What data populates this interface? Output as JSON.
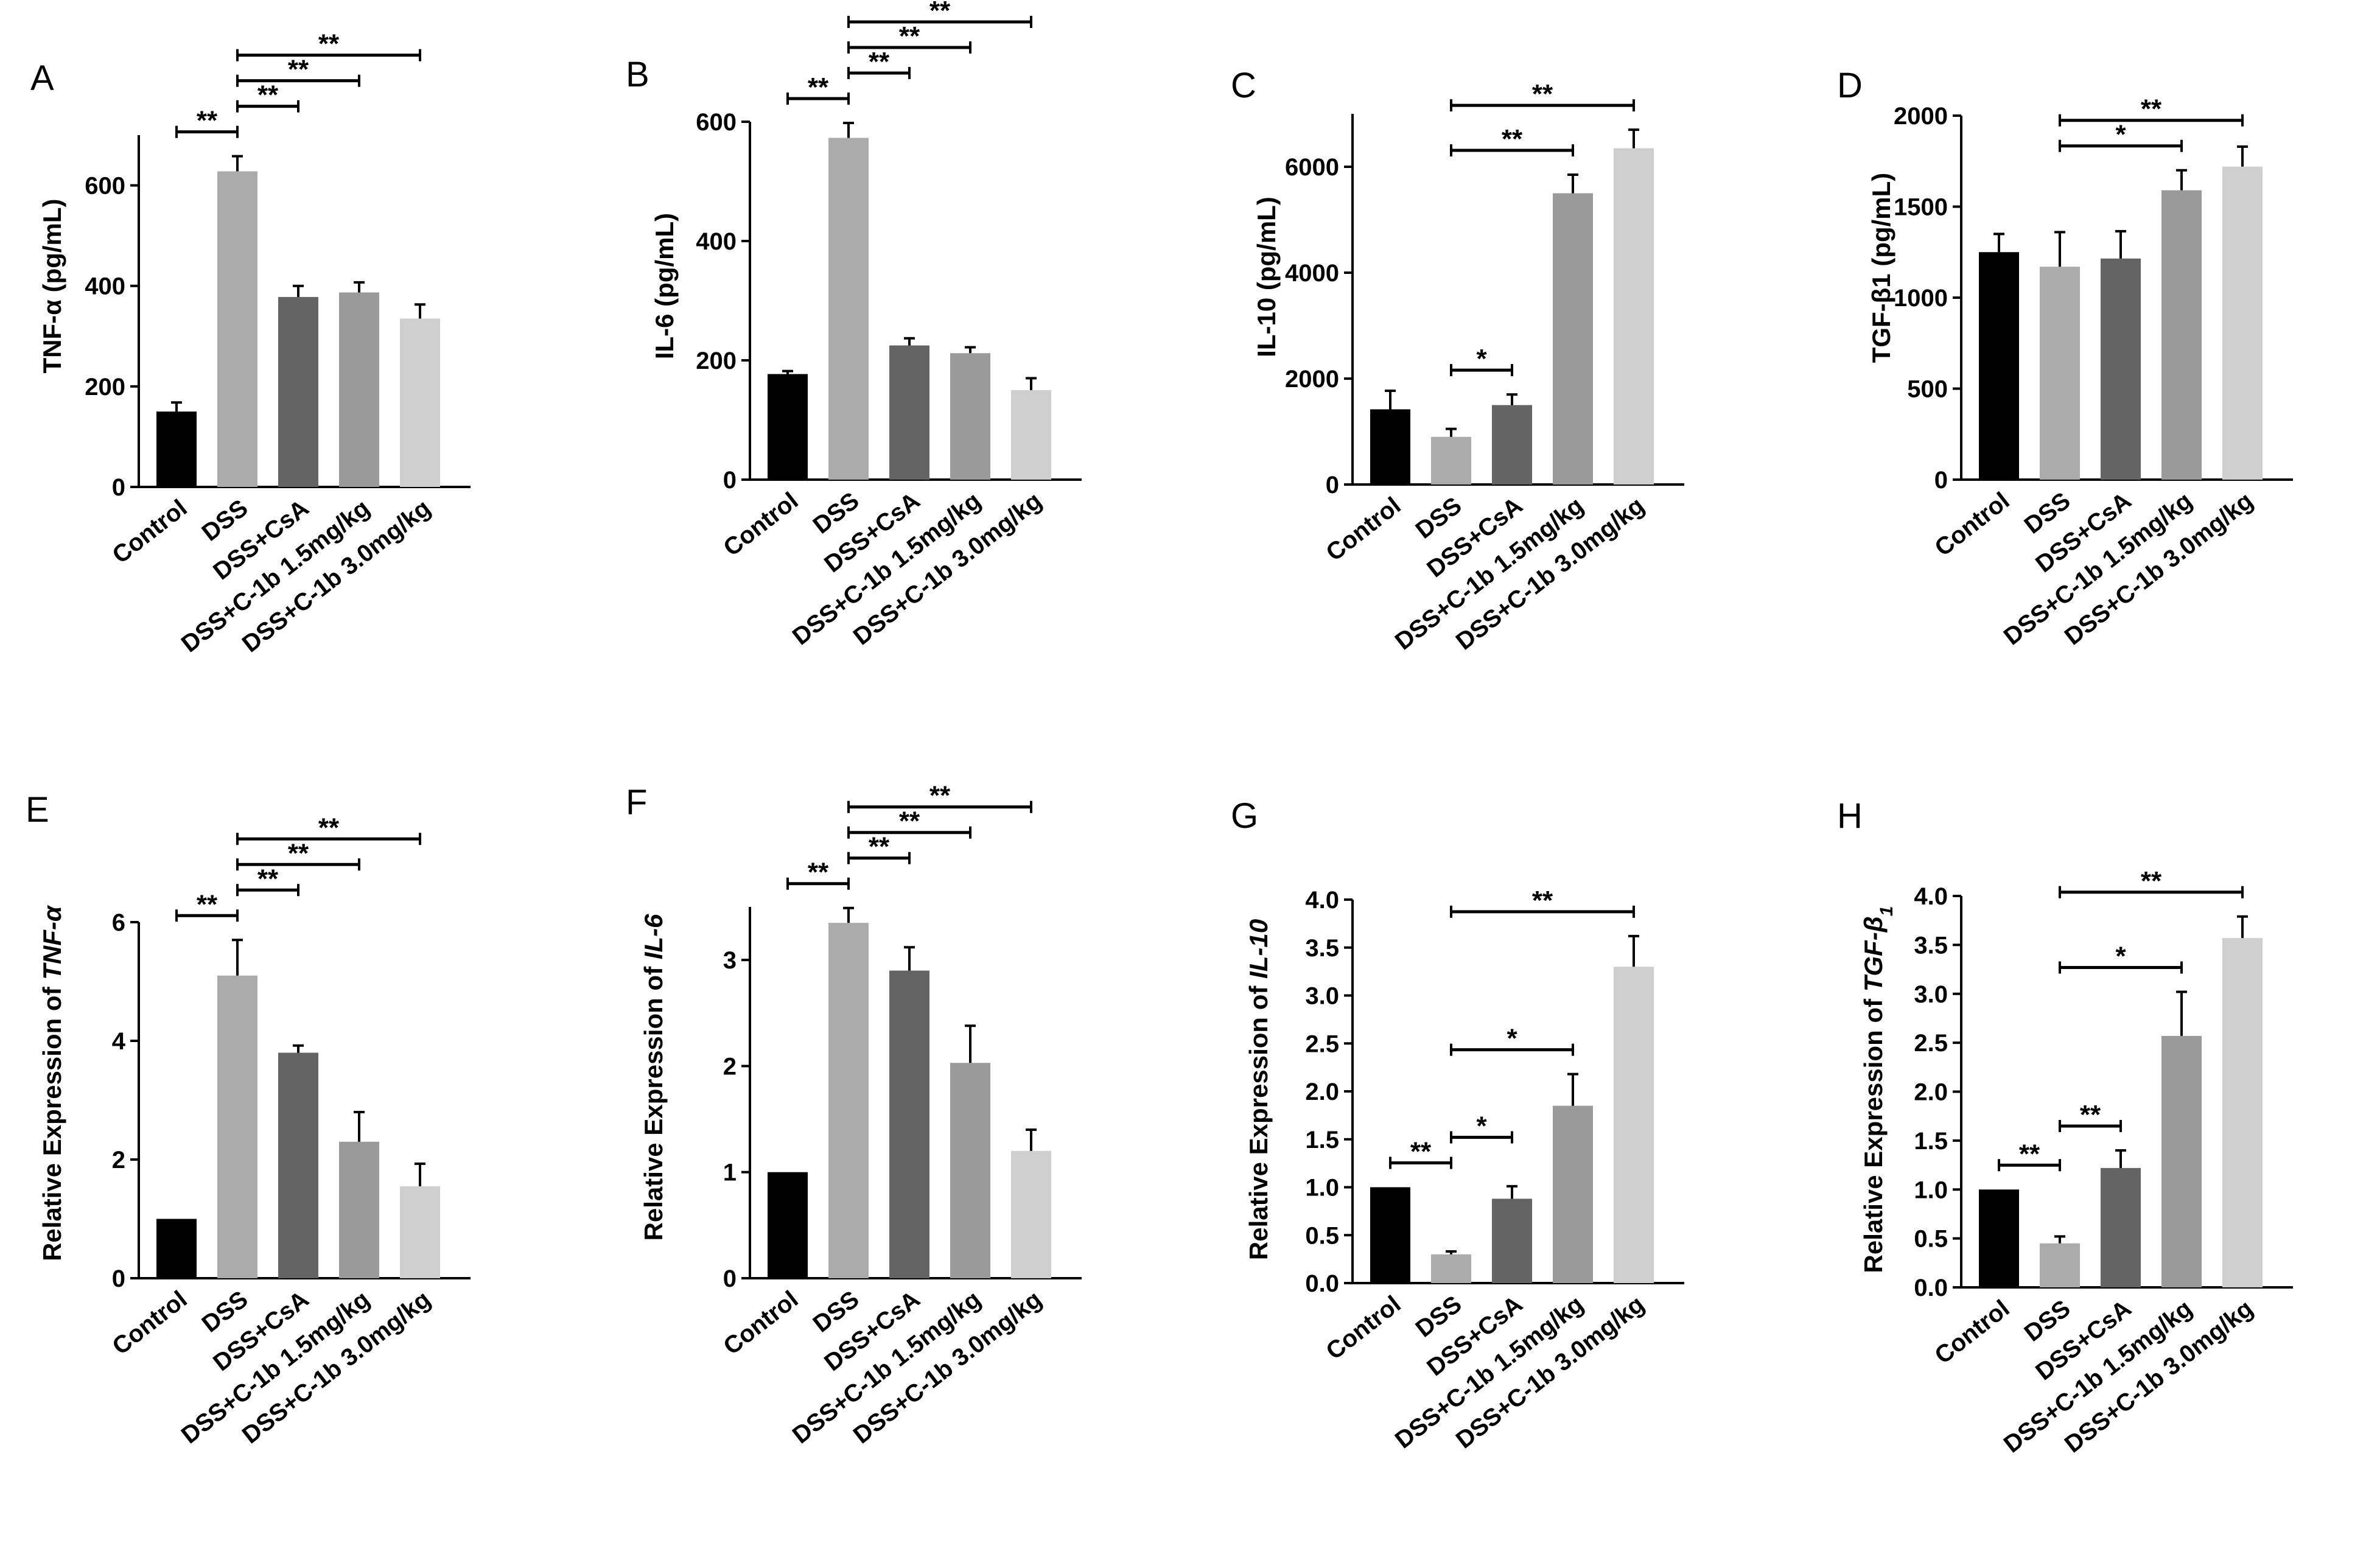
{
  "figure": {
    "categories": [
      "Control",
      "DSS",
      "DSS+CsA",
      "DSS+C-1b 1.5mg/kg",
      "DSS+C-1b 3.0mg/kg"
    ],
    "bar_colors": [
      "#000000",
      "#ababab",
      "#646464",
      "#9a9a9a",
      "#cfcfcf"
    ]
  },
  "chart_data": [
    {
      "type": "bar",
      "panel": "A",
      "title": "",
      "ylabel": "TNF-α (pg/mL)",
      "ylabel_parts": [
        {
          "t": "TNF-α (pg/mL)",
          "i": false
        }
      ],
      "categories": [
        "Control",
        "DSS",
        "DSS+CsA",
        "DSS+C-1b 1.5mg/kg",
        "DSS+C-1b 3.0mg/kg"
      ],
      "values": [
        150,
        628,
        378,
        387,
        335
      ],
      "errors": [
        18,
        30,
        22,
        20,
        28
      ],
      "ylim": [
        0,
        700
      ],
      "yticks": [
        0,
        200,
        400,
        600
      ],
      "ytick_labels": [
        "0",
        "200",
        "400",
        "600"
      ],
      "significance": [
        {
          "from": 0,
          "to": 1,
          "label": "**"
        },
        {
          "from": 1,
          "to": 2,
          "label": "**"
        },
        {
          "from": 1,
          "to": 3,
          "label": "**"
        },
        {
          "from": 1,
          "to": 4,
          "label": "**"
        }
      ]
    },
    {
      "type": "bar",
      "panel": "B",
      "title": "",
      "ylabel": "IL-6 (pg/mL)",
      "ylabel_parts": [
        {
          "t": "IL-6 (pg/mL)",
          "i": false
        }
      ],
      "categories": [
        "Control",
        "DSS",
        "DSS+CsA",
        "DSS+C-1b 1.5mg/kg",
        "DSS+C-1b 3.0mg/kg"
      ],
      "values": [
        177,
        573,
        225,
        212,
        150
      ],
      "errors": [
        5,
        25,
        12,
        10,
        20
      ],
      "ylim": [
        0,
        600
      ],
      "yticks": [
        0,
        200,
        400,
        600
      ],
      "ytick_labels": [
        "0",
        "200",
        "400",
        "600"
      ],
      "significance": [
        {
          "from": 0,
          "to": 1,
          "label": "**"
        },
        {
          "from": 1,
          "to": 2,
          "label": "**"
        },
        {
          "from": 1,
          "to": 3,
          "label": "**"
        },
        {
          "from": 1,
          "to": 4,
          "label": "**"
        }
      ]
    },
    {
      "type": "bar",
      "panel": "C",
      "title": "",
      "ylabel": "IL-10 (pg/mL)",
      "ylabel_parts": [
        {
          "t": "IL-10 (pg/mL)",
          "i": false
        }
      ],
      "categories": [
        "Control",
        "DSS",
        "DSS+CsA",
        "DSS+C-1b 1.5mg/kg",
        "DSS+C-1b 3.0mg/kg"
      ],
      "values": [
        1420,
        900,
        1500,
        5500,
        6350
      ],
      "errors": [
        350,
        150,
        200,
        350,
        350
      ],
      "ylim": [
        0,
        7000
      ],
      "yticks": [
        0,
        2000,
        4000,
        6000
      ],
      "ytick_labels": [
        "0",
        "2000",
        "4000",
        "6000"
      ],
      "significance": [
        {
          "from": 1,
          "to": 2,
          "label": "*"
        },
        {
          "from": 1,
          "to": 3,
          "label": "**"
        },
        {
          "from": 1,
          "to": 4,
          "label": "**"
        }
      ]
    },
    {
      "type": "bar",
      "panel": "D",
      "title": "",
      "ylabel": "TGF-β1 (pg/mL)",
      "ylabel_parts": [
        {
          "t": "TGF-β1 (pg/mL)",
          "i": false
        }
      ],
      "categories": [
        "Control",
        "DSS",
        "DSS+CsA",
        "DSS+C-1b 1.5mg/kg",
        "DSS+C-1b 3.0mg/kg"
      ],
      "values": [
        1250,
        1170,
        1215,
        1590,
        1720
      ],
      "errors": [
        100,
        190,
        150,
        110,
        110
      ],
      "ylim": [
        0,
        2000
      ],
      "yticks": [
        0,
        500,
        1000,
        1500,
        2000
      ],
      "ytick_labels": [
        "0",
        "500",
        "1000",
        "1500",
        "2000"
      ],
      "significance": [
        {
          "from": 1,
          "to": 3,
          "label": "*"
        },
        {
          "from": 1,
          "to": 4,
          "label": "**"
        }
      ]
    },
    {
      "type": "bar",
      "panel": "E",
      "title": "",
      "ylabel": "Relative Expression of TNF-α",
      "ylabel_parts": [
        {
          "t": "Relative Expression of ",
          "i": false
        },
        {
          "t": "TNF-α",
          "i": true
        }
      ],
      "categories": [
        "Control",
        "DSS",
        "DSS+CsA",
        "DSS+C-1b 1.5mg/kg",
        "DSS+C-1b 3.0mg/kg"
      ],
      "values": [
        1.0,
        5.1,
        3.8,
        2.3,
        1.55
      ],
      "errors": [
        0,
        0.6,
        0.12,
        0.5,
        0.38
      ],
      "ylim": [
        0,
        6
      ],
      "yticks": [
        0,
        2,
        4,
        6
      ],
      "ytick_labels": [
        "0",
        "2",
        "4",
        "6"
      ],
      "significance": [
        {
          "from": 0,
          "to": 1,
          "label": "**"
        },
        {
          "from": 1,
          "to": 2,
          "label": "**"
        },
        {
          "from": 1,
          "to": 3,
          "label": "**"
        },
        {
          "from": 1,
          "to": 4,
          "label": "**"
        }
      ]
    },
    {
      "type": "bar",
      "panel": "F",
      "title": "",
      "ylabel": "Relative Expression of IL-6",
      "ylabel_parts": [
        {
          "t": "Relative Expression of ",
          "i": false
        },
        {
          "t": "IL-6",
          "i": true
        }
      ],
      "categories": [
        "Control",
        "DSS",
        "DSS+CsA",
        "DSS+C-1b 1.5mg/kg",
        "DSS+C-1b 3.0mg/kg"
      ],
      "values": [
        1.0,
        3.35,
        2.9,
        2.03,
        1.2
      ],
      "errors": [
        0,
        0.14,
        0.22,
        0.35,
        0.2
      ],
      "ylim": [
        0,
        3.5
      ],
      "yticks": [
        0,
        1,
        2,
        3
      ],
      "ytick_labels": [
        "0",
        "1",
        "2",
        "3"
      ],
      "significance": [
        {
          "from": 0,
          "to": 1,
          "label": "**"
        },
        {
          "from": 1,
          "to": 2,
          "label": "**"
        },
        {
          "from": 1,
          "to": 3,
          "label": "**"
        },
        {
          "from": 1,
          "to": 4,
          "label": "**"
        }
      ]
    },
    {
      "type": "bar",
      "panel": "G",
      "title": "",
      "ylabel": "Relative Expression of IL-10",
      "ylabel_parts": [
        {
          "t": "Relative Expression of ",
          "i": false
        },
        {
          "t": "IL-10",
          "i": true
        }
      ],
      "categories": [
        "Control",
        "DSS",
        "DSS+CsA",
        "DSS+C-1b 1.5mg/kg",
        "DSS+C-1b 3.0mg/kg"
      ],
      "values": [
        1.0,
        0.3,
        0.88,
        1.85,
        3.3
      ],
      "errors": [
        0,
        0.03,
        0.13,
        0.33,
        0.32
      ],
      "ylim": [
        0,
        4.0
      ],
      "yticks": [
        0,
        0.5,
        1,
        1.5,
        2,
        2.5,
        3,
        3.5,
        4
      ],
      "ytick_labels": [
        "0.0",
        "0.5",
        "1.0",
        "1.5",
        "2.0",
        "2.5",
        "3.0",
        "3.5",
        "4.0"
      ],
      "significance": [
        {
          "from": 0,
          "to": 1,
          "label": "**"
        },
        {
          "from": 1,
          "to": 2,
          "label": "*"
        },
        {
          "from": 1,
          "to": 3,
          "label": "*"
        },
        {
          "from": 1,
          "to": 4,
          "label": "**"
        }
      ]
    },
    {
      "type": "bar",
      "panel": "H",
      "title": "",
      "ylabel": "Relative Expression of TGF-β1",
      "ylabel_parts": [
        {
          "t": "Relative Expression of ",
          "i": false
        },
        {
          "t": "TGF-β",
          "i": true
        },
        {
          "t": "1",
          "i": true,
          "sub": true
        }
      ],
      "categories": [
        "Control",
        "DSS",
        "DSS+CsA",
        "DSS+C-1b 1.5mg/kg",
        "DSS+C-1b 3.0mg/kg"
      ],
      "values": [
        1.0,
        0.45,
        1.22,
        2.57,
        3.57
      ],
      "errors": [
        0,
        0.07,
        0.18,
        0.45,
        0.22
      ],
      "ylim": [
        0,
        4.0
      ],
      "yticks": [
        0,
        0.5,
        1,
        1.5,
        2,
        2.5,
        3,
        3.5,
        4
      ],
      "ytick_labels": [
        "0.0",
        "0.5",
        "1.0",
        "1.5",
        "2.0",
        "2.5",
        "3.0",
        "3.5",
        "4.0"
      ],
      "significance": [
        {
          "from": 0,
          "to": 1,
          "label": "**"
        },
        {
          "from": 1,
          "to": 2,
          "label": "**"
        },
        {
          "from": 1,
          "to": 3,
          "label": "*"
        },
        {
          "from": 1,
          "to": 4,
          "label": "**"
        }
      ]
    }
  ]
}
